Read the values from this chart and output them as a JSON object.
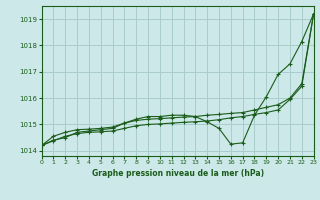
{
  "xlabel": "Graphe pression niveau de la mer (hPa)",
  "ylim": [
    1013.8,
    1019.5
  ],
  "xlim": [
    0,
    23
  ],
  "yticks": [
    1014,
    1015,
    1016,
    1017,
    1018,
    1019
  ],
  "xticks": [
    0,
    1,
    2,
    3,
    4,
    5,
    6,
    7,
    8,
    9,
    10,
    11,
    12,
    13,
    14,
    15,
    16,
    17,
    18,
    19,
    20,
    21,
    22,
    23
  ],
  "bg_color": "#cce8e8",
  "grid_color": "#aacccc",
  "line_color": "#1a5c1a",
  "series1": [
    1014.2,
    1014.4,
    1014.5,
    1014.7,
    1014.75,
    1014.8,
    1014.85,
    1015.05,
    1015.2,
    1015.3,
    1015.3,
    1015.35,
    1015.35,
    1015.3,
    1015.1,
    1014.85,
    1014.25,
    1014.3,
    1015.35,
    1016.05,
    1016.9,
    1017.3,
    1018.15,
    1019.2
  ],
  "series2": [
    1014.2,
    1014.55,
    1014.7,
    1014.8,
    1014.82,
    1014.85,
    1014.9,
    1015.05,
    1015.15,
    1015.2,
    1015.22,
    1015.25,
    1015.28,
    1015.3,
    1015.35,
    1015.38,
    1015.42,
    1015.45,
    1015.55,
    1015.65,
    1015.75,
    1016.0,
    1016.55,
    1019.2
  ],
  "series3": [
    1014.2,
    1014.38,
    1014.55,
    1014.65,
    1014.7,
    1014.72,
    1014.75,
    1014.85,
    1014.95,
    1015.0,
    1015.02,
    1015.05,
    1015.08,
    1015.1,
    1015.13,
    1015.18,
    1015.25,
    1015.3,
    1015.38,
    1015.45,
    1015.55,
    1015.95,
    1016.45,
    1019.2
  ]
}
